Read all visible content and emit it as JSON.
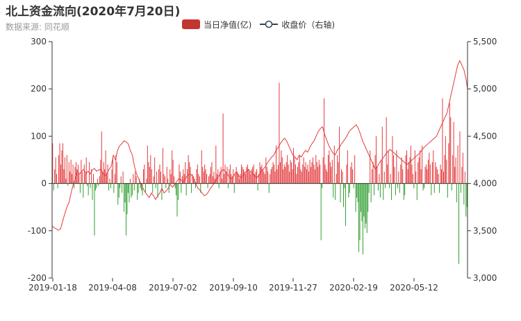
{
  "title": "北上资金流向(2020年7月20日)",
  "subtitle": "数据来源: 同花顺",
  "legend": {
    "items": [
      {
        "label": "当日净值(亿)",
        "color": "#c23531",
        "kind": "bar"
      },
      {
        "label": "收盘价（右轴)",
        "color": "#2f4554",
        "kind": "line"
      }
    ]
  },
  "colors": {
    "positive": "#e4393c",
    "negative": "#2e9d2e",
    "line": "#e4393c",
    "axis": "#333333"
  },
  "chart_data": {
    "type": "bar",
    "title": "北上资金流向(2020年7月20日)",
    "x_tick_labels": [
      "2019-01-18",
      "2019-04-08",
      "2019-07-02",
      "2019-09-10",
      "2019-11-27",
      "2020-02-19",
      "2020-05-12"
    ],
    "y_left": {
      "min": -200,
      "max": 300,
      "ticks": [
        "300",
        "200",
        "100",
        "0",
        "-100",
        "-200"
      ]
    },
    "y_right": {
      "min": 3000,
      "max": 5500,
      "ticks": [
        "5,500",
        "5,000",
        "4,500",
        "4,000",
        "3,500",
        "3,000"
      ]
    },
    "grid": false,
    "legend_position": "top-center",
    "series": [
      {
        "name": "当日净值(亿)",
        "type": "bar",
        "axis": "left",
        "values": [
          85,
          -15,
          30,
          55,
          20,
          -10,
          60,
          85,
          40,
          70,
          85,
          30,
          55,
          10,
          60,
          -5,
          45,
          25,
          50,
          20,
          40,
          -10,
          35,
          45,
          30,
          40,
          20,
          -20,
          50,
          25,
          -30,
          40,
          20,
          55,
          -5,
          -25,
          45,
          -10,
          30,
          -35,
          20,
          -110,
          -15,
          -10,
          10,
          -5,
          15,
          50,
          110,
          25,
          45,
          30,
          70,
          20,
          40,
          -15,
          10,
          -10,
          30,
          55,
          -20,
          20,
          60,
          45,
          -45,
          -30,
          -10,
          15,
          -20,
          25,
          -60,
          -40,
          -110,
          -65,
          -20,
          -40,
          10,
          -30,
          -25,
          20,
          -15,
          25,
          15,
          -35,
          -20,
          10,
          -10,
          -15,
          -25,
          30,
          40,
          -20,
          10,
          80,
          45,
          35,
          60,
          30,
          -20,
          15,
          55,
          -10,
          25,
          -30,
          30,
          40,
          25,
          -35,
          75,
          20,
          15,
          -10,
          35,
          10,
          -20,
          30,
          20,
          70,
          50,
          15,
          -10,
          -25,
          -70,
          -35,
          40,
          25,
          -20,
          15,
          30,
          20,
          45,
          -25,
          30,
          60,
          45,
          35,
          -20,
          20,
          15,
          10,
          -10,
          30,
          40,
          20,
          15,
          -20,
          70,
          35,
          25,
          40,
          30,
          20,
          -10,
          15,
          20,
          35,
          45,
          15,
          25,
          10,
          80,
          20,
          30,
          -10,
          25,
          35,
          10,
          148,
          20,
          40,
          25,
          35,
          -10,
          30,
          40,
          20,
          15,
          30,
          -20,
          20,
          35,
          25,
          20,
          10,
          20,
          40,
          35,
          30,
          25,
          20,
          35,
          40,
          30,
          25,
          20,
          30,
          35,
          40,
          20,
          25,
          30,
          -15,
          20,
          45,
          35,
          40,
          30,
          25,
          20,
          55,
          35,
          25,
          -20,
          20,
          30,
          35,
          45,
          40,
          25,
          80,
          30,
          40,
          213,
          45,
          70,
          55,
          30,
          40,
          35,
          45,
          60,
          40,
          25,
          50,
          45,
          30,
          75,
          55,
          40,
          20,
          35,
          45,
          60,
          30,
          25,
          40,
          55,
          35,
          45,
          30,
          40,
          25,
          50,
          35,
          45,
          55,
          40,
          30,
          60,
          45,
          35,
          50,
          40,
          -120,
          -10,
          55,
          180,
          40,
          30,
          25,
          60,
          70,
          45,
          35,
          50,
          -30,
          80,
          -35,
          20,
          60,
          45,
          120,
          -40,
          30,
          25,
          -50,
          -10,
          -90,
          40,
          70,
          -30,
          -20,
          35,
          45,
          30,
          -10,
          60,
          -60,
          -30,
          -40,
          -145,
          -120,
          -60,
          -80,
          -150,
          -70,
          -95,
          -85,
          -105,
          -60,
          -20,
          70,
          -40,
          30,
          45,
          -25,
          60,
          100,
          35,
          -15,
          20,
          -30,
          50,
          120,
          -35,
          25,
          -10,
          140,
          40,
          70,
          -10,
          20,
          -35,
          100,
          60,
          35,
          -25,
          70,
          -10,
          25,
          -20,
          40,
          55,
          30,
          -35,
          -25,
          60,
          70,
          30,
          45,
          55,
          80,
          40,
          20,
          -10,
          70,
          25,
          -35,
          45,
          55,
          70,
          30,
          80,
          -15,
          -10,
          35,
          40,
          30,
          50,
          65,
          40,
          -25,
          45,
          70,
          -20,
          45,
          35,
          30,
          20,
          -20,
          40,
          30,
          180,
          25,
          60,
          100,
          50,
          -30,
          85,
          170,
          140,
          -15,
          60,
          130,
          35,
          55,
          -40,
          80,
          -170,
          110,
          -20,
          35,
          65,
          -45,
          25,
          -70,
          -50
        ]
      },
      {
        "name": "收盘价（右轴)",
        "type": "line",
        "axis": "right",
        "anchors": [
          [
            0,
            3550
          ],
          [
            3,
            3530
          ],
          [
            6,
            3520
          ],
          [
            9,
            3505
          ],
          [
            12,
            3520
          ],
          [
            15,
            3600
          ],
          [
            18,
            3680
          ],
          [
            21,
            3750
          ],
          [
            24,
            3800
          ],
          [
            27,
            3900
          ],
          [
            30,
            3990
          ],
          [
            33,
            4050
          ],
          [
            36,
            4130
          ],
          [
            39,
            4100
          ],
          [
            42,
            4130
          ],
          [
            45,
            4150
          ],
          [
            48,
            4100
          ],
          [
            51,
            4130
          ],
          [
            54,
            4100
          ],
          [
            57,
            4140
          ],
          [
            60,
            4160
          ],
          [
            63,
            4130
          ],
          [
            66,
            4140
          ],
          [
            69,
            4150
          ],
          [
            72,
            4110
          ],
          [
            75,
            4080
          ],
          [
            78,
            4110
          ],
          [
            81,
            4150
          ],
          [
            84,
            4180
          ],
          [
            87,
            4300
          ],
          [
            90,
            4250
          ],
          [
            93,
            4350
          ],
          [
            96,
            4400
          ],
          [
            99,
            4420
          ],
          [
            102,
            4450
          ],
          [
            105,
            4440
          ],
          [
            108,
            4420
          ],
          [
            111,
            4350
          ],
          [
            114,
            4300
          ],
          [
            117,
            4180
          ],
          [
            120,
            4100
          ],
          [
            123,
            4050
          ],
          [
            126,
            4000
          ],
          [
            129,
            3950
          ],
          [
            132,
            3910
          ],
          [
            135,
            3880
          ],
          [
            138,
            3850
          ],
          [
            141,
            3900
          ],
          [
            144,
            3870
          ],
          [
            147,
            3830
          ],
          [
            150,
            3870
          ],
          [
            153,
            3900
          ],
          [
            156,
            3950
          ],
          [
            159,
            3900
          ],
          [
            162,
            3920
          ],
          [
            165,
            3950
          ],
          [
            168,
            3990
          ],
          [
            171,
            3960
          ],
          [
            174,
            3990
          ],
          [
            177,
            4020
          ],
          [
            180,
            4050
          ],
          [
            183,
            4040
          ],
          [
            186,
            4010
          ],
          [
            189,
            4050
          ],
          [
            192,
            4080
          ],
          [
            195,
            4100
          ],
          [
            198,
            4090
          ],
          [
            201,
            4050
          ],
          [
            204,
            4000
          ],
          [
            207,
            3950
          ],
          [
            210,
            3930
          ],
          [
            213,
            3900
          ],
          [
            216,
            3870
          ],
          [
            219,
            3880
          ],
          [
            222,
            3910
          ],
          [
            225,
            3950
          ],
          [
            228,
            3980
          ],
          [
            231,
            4010
          ],
          [
            234,
            4050
          ],
          [
            237,
            4080
          ],
          [
            240,
            4120
          ],
          [
            243,
            4150
          ],
          [
            246,
            4130
          ],
          [
            249,
            4100
          ],
          [
            252,
            4060
          ],
          [
            255,
            4050
          ],
          [
            258,
            4080
          ],
          [
            261,
            4120
          ],
          [
            264,
            4100
          ],
          [
            267,
            4060
          ],
          [
            270,
            4070
          ],
          [
            273,
            4100
          ],
          [
            276,
            4130
          ],
          [
            279,
            4150
          ],
          [
            282,
            4120
          ],
          [
            285,
            4100
          ],
          [
            288,
            4080
          ],
          [
            291,
            4060
          ],
          [
            294,
            4090
          ],
          [
            297,
            4130
          ],
          [
            300,
            4150
          ],
          [
            303,
            4180
          ],
          [
            306,
            4220
          ],
          [
            309,
            4250
          ],
          [
            312,
            4280
          ],
          [
            315,
            4300
          ],
          [
            318,
            4350
          ],
          [
            321,
            4380
          ],
          [
            324,
            4420
          ],
          [
            327,
            4450
          ],
          [
            330,
            4480
          ],
          [
            333,
            4450
          ],
          [
            336,
            4400
          ],
          [
            339,
            4350
          ],
          [
            342,
            4300
          ],
          [
            345,
            4280
          ],
          [
            348,
            4250
          ],
          [
            351,
            4300
          ],
          [
            354,
            4280
          ],
          [
            357,
            4320
          ],
          [
            360,
            4350
          ],
          [
            363,
            4330
          ],
          [
            366,
            4380
          ],
          [
            369,
            4420
          ],
          [
            372,
            4450
          ],
          [
            375,
            4500
          ],
          [
            378,
            4550
          ],
          [
            381,
            4580
          ],
          [
            384,
            4600
          ],
          [
            387,
            4520
          ],
          [
            390,
            4460
          ],
          [
            393,
            4400
          ],
          [
            396,
            4360
          ],
          [
            399,
            4320
          ],
          [
            402,
            4300
          ],
          [
            405,
            4350
          ],
          [
            408,
            4380
          ],
          [
            411,
            4420
          ],
          [
            414,
            4450
          ],
          [
            417,
            4480
          ],
          [
            420,
            4520
          ],
          [
            423,
            4560
          ],
          [
            426,
            4580
          ],
          [
            429,
            4600
          ],
          [
            432,
            4620
          ],
          [
            435,
            4580
          ],
          [
            438,
            4520
          ],
          [
            441,
            4450
          ],
          [
            444,
            4400
          ],
          [
            447,
            4350
          ],
          [
            450,
            4300
          ],
          [
            453,
            4250
          ],
          [
            456,
            4200
          ],
          [
            459,
            4150
          ],
          [
            462,
            4180
          ],
          [
            465,
            4220
          ],
          [
            468,
            4250
          ],
          [
            471,
            4280
          ],
          [
            474,
            4310
          ],
          [
            477,
            4340
          ],
          [
            480,
            4360
          ],
          [
            483,
            4340
          ],
          [
            486,
            4320
          ],
          [
            489,
            4300
          ],
          [
            492,
            4280
          ],
          [
            495,
            4260
          ],
          [
            498,
            4240
          ],
          [
            501,
            4220
          ],
          [
            504,
            4200
          ],
          [
            507,
            4220
          ],
          [
            510,
            4240
          ],
          [
            513,
            4260
          ],
          [
            516,
            4280
          ],
          [
            519,
            4300
          ],
          [
            522,
            4320
          ],
          [
            525,
            4350
          ],
          [
            528,
            4380
          ],
          [
            531,
            4400
          ],
          [
            534,
            4420
          ],
          [
            537,
            4440
          ],
          [
            540,
            4460
          ],
          [
            543,
            4480
          ],
          [
            546,
            4500
          ],
          [
            549,
            4550
          ],
          [
            552,
            4600
          ],
          [
            555,
            4650
          ],
          [
            558,
            4700
          ],
          [
            561,
            4750
          ],
          [
            564,
            4850
          ],
          [
            567,
            4950
          ],
          [
            570,
            5050
          ],
          [
            573,
            5150
          ],
          [
            576,
            5250
          ],
          [
            579,
            5300
          ],
          [
            582,
            5250
          ],
          [
            585,
            5200
          ],
          [
            588,
            5100
          ],
          [
            590,
            5000
          ]
        ],
        "note_index_domain": [
          0,
          590
        ]
      }
    ]
  }
}
